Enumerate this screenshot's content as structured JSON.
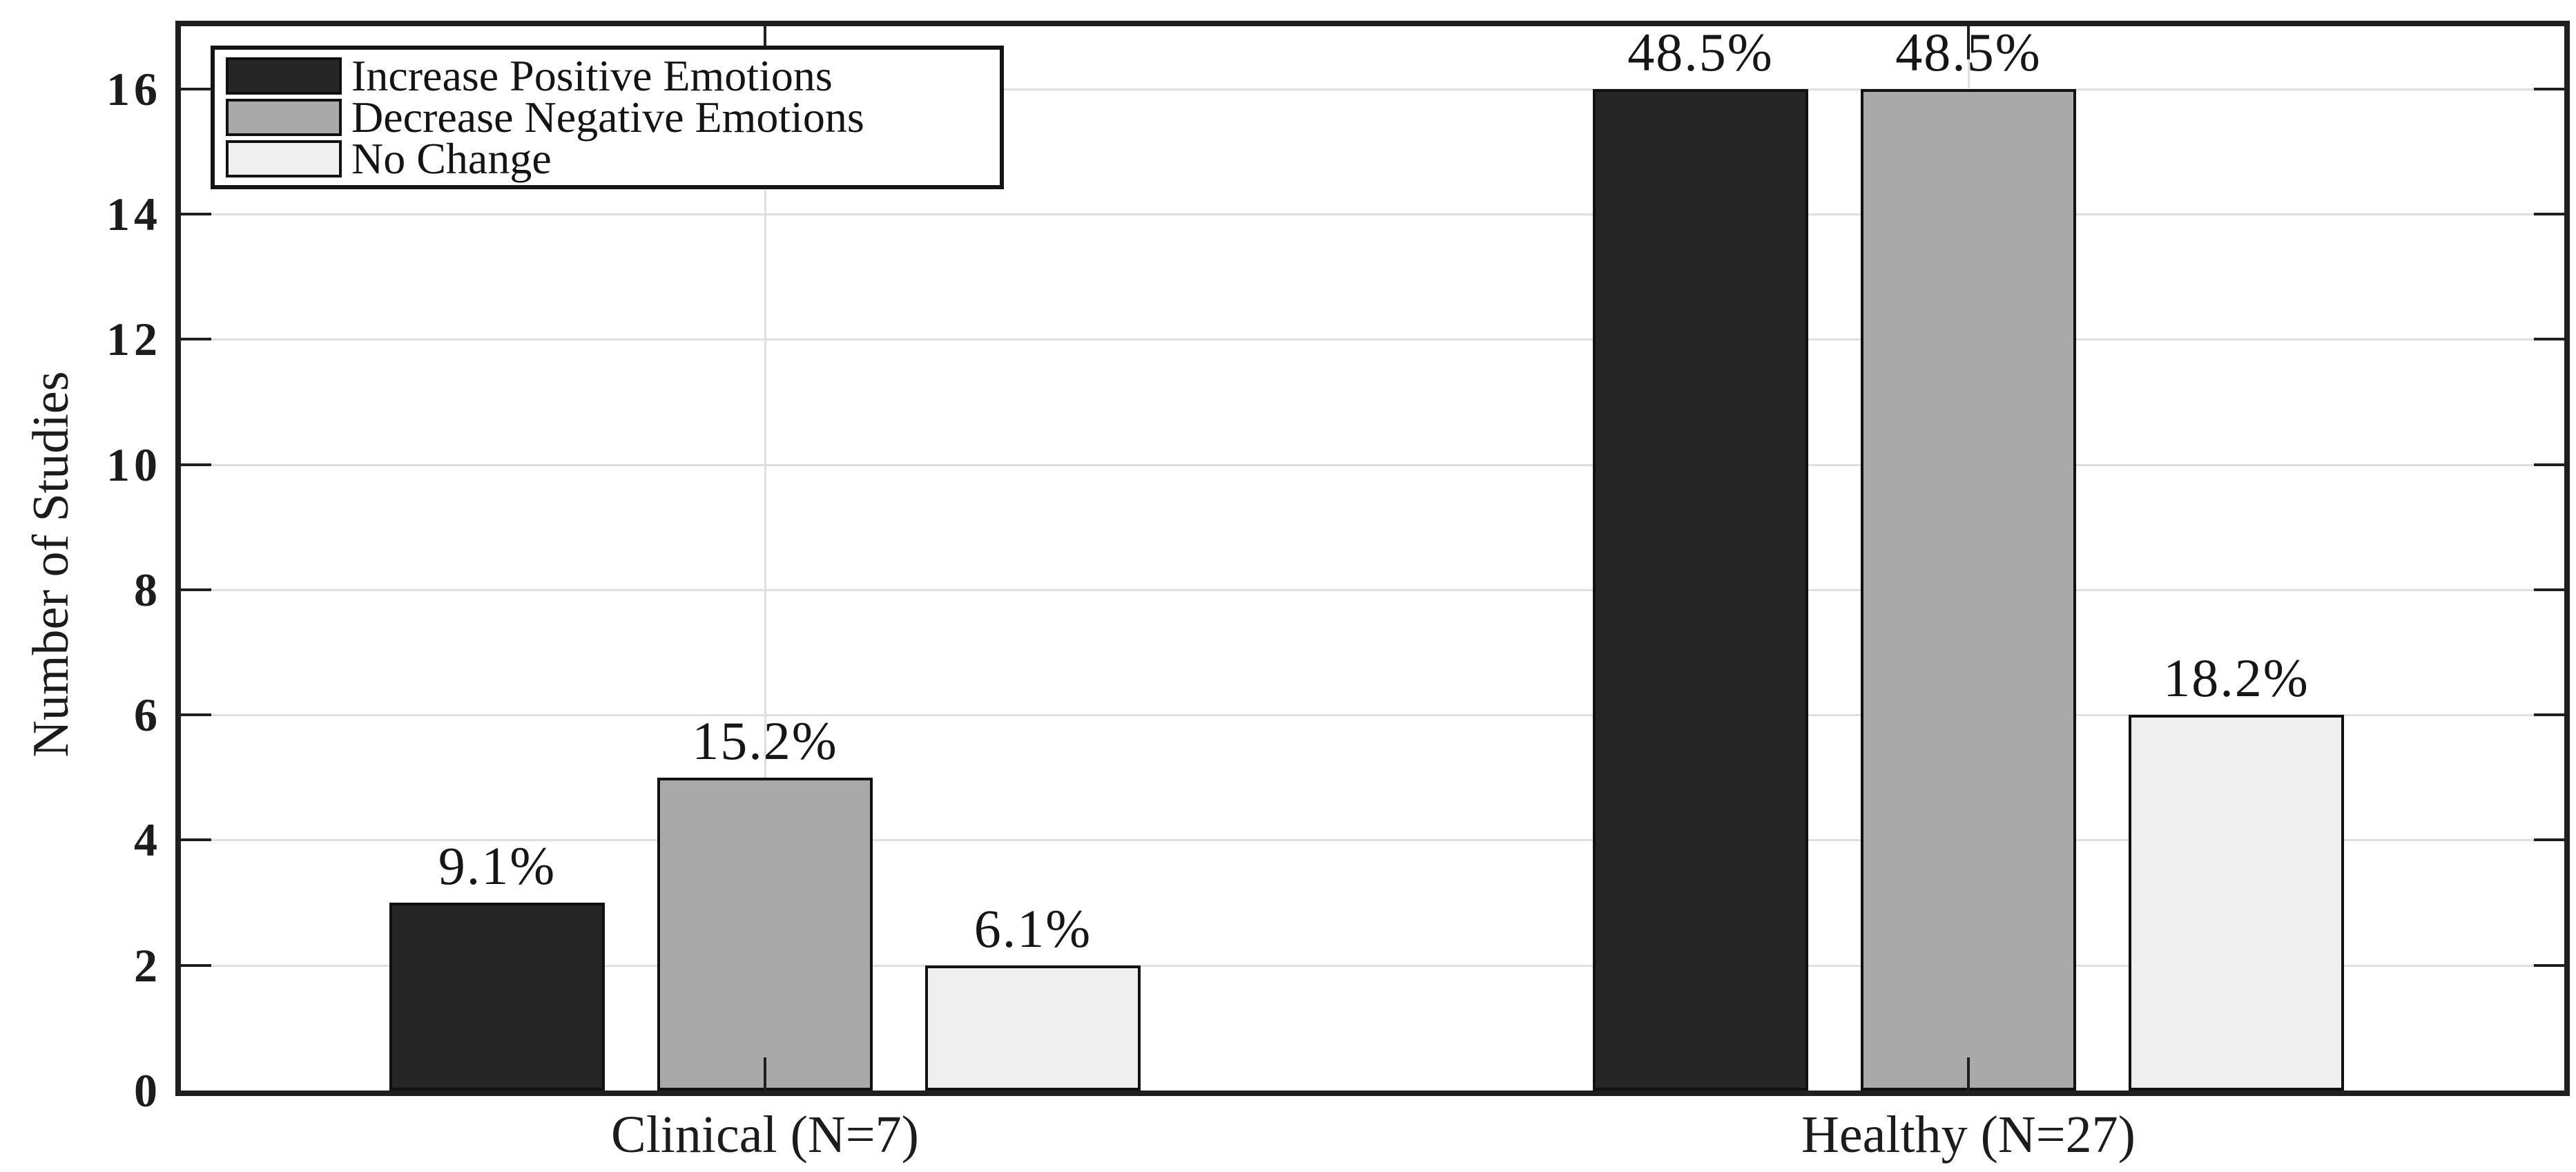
{
  "chart_data": {
    "type": "bar",
    "title": "",
    "xlabel": "",
    "ylabel": "Number of Studies",
    "categories": [
      "Clinical (N=7)",
      "Healthy (N=27)"
    ],
    "series": [
      {
        "name": "Increase Positive Emotions",
        "color": "#262626",
        "values": [
          3,
          16
        ],
        "percent_labels": [
          "9.1%",
          "48.5%"
        ]
      },
      {
        "name": "Decrease Negative Emotions",
        "color": "#a9a9a9",
        "values": [
          5,
          16
        ],
        "percent_labels": [
          "15.2%",
          "48.5%"
        ]
      },
      {
        "name": "No Change",
        "color": "#efefef",
        "values": [
          2,
          6
        ],
        "percent_labels": [
          "6.1%",
          "18.2%"
        ]
      }
    ],
    "ylim": [
      0,
      17
    ],
    "yticks": [
      0,
      2,
      4,
      6,
      8,
      10,
      12,
      14,
      16
    ],
    "grid": true,
    "legend_position": "top-left",
    "colors": {
      "axis": "#1f1f1f",
      "grid": "#dfdfdf",
      "bar_edge": "#111111",
      "text": "#1c1c1c",
      "background": "#ffffff"
    }
  }
}
